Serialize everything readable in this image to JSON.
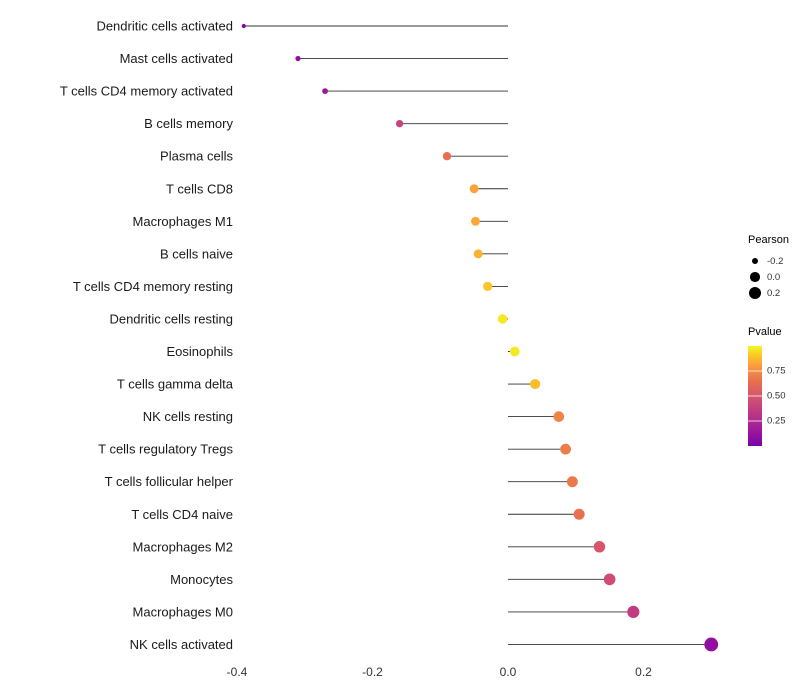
{
  "chart_data": {
    "type": "lollipop",
    "title": "",
    "xlabel": "",
    "ylabel": "",
    "xlim": [
      -0.45,
      0.335
    ],
    "x_ticks": [
      -0.4,
      -0.2,
      0.0,
      0.2
    ],
    "x_tick_labels": [
      "-0.4",
      "-0.2",
      "0.0",
      "0.2"
    ],
    "grid": "off",
    "categories": [
      "Dendritic cells activated",
      "Mast cells activated",
      "T cells CD4 memory activated",
      "B cells memory",
      "Plasma cells",
      "T cells CD8",
      "Macrophages M1",
      "B cells naive",
      "T cells CD4 memory resting",
      "Dendritic cells resting",
      "Eosinophils",
      "T cells gamma delta",
      "NK cells resting",
      "T cells regulatory  Tregs",
      "T cells follicular helper",
      "T cells CD4 naive",
      "Macrophages M2",
      "Monocytes",
      "Macrophages M0",
      "NK cells activated"
    ],
    "series": [
      {
        "name": "Pearson",
        "values": [
          -0.39,
          -0.31,
          -0.27,
          -0.16,
          -0.09,
          -0.05,
          -0.048,
          -0.044,
          -0.03,
          -0.008,
          0.01,
          0.04,
          0.075,
          0.085,
          0.095,
          0.105,
          0.135,
          0.15,
          0.185,
          0.3
        ]
      },
      {
        "name": "Pvalue",
        "values": [
          0.03,
          0.1,
          0.15,
          0.4,
          0.65,
          0.82,
          0.83,
          0.86,
          0.9,
          0.97,
          0.97,
          0.88,
          0.72,
          0.7,
          0.68,
          0.65,
          0.5,
          0.45,
          0.35,
          0.1
        ]
      }
    ],
    "stem_color": "#333333",
    "colormap": {
      "name": "plasma-like",
      "stops": [
        {
          "t": 0.0,
          "color": "#7a02a8"
        },
        {
          "t": 0.15,
          "color": "#9c179e"
        },
        {
          "t": 0.3,
          "color": "#b83289"
        },
        {
          "t": 0.5,
          "color": "#d6556d"
        },
        {
          "t": 0.65,
          "color": "#e8704f"
        },
        {
          "t": 0.8,
          "color": "#fa9b3d"
        },
        {
          "t": 0.9,
          "color": "#fdc527"
        },
        {
          "t": 1.0,
          "color": "#f0f921"
        }
      ]
    },
    "legend_size": {
      "title": "Pearson",
      "ticks": [
        -0.2,
        0.0,
        0.2
      ],
      "tick_labels": [
        "-0.2",
        "0.0",
        "0.2"
      ],
      "dot_color": "#000000"
    },
    "legend_color": {
      "title": "Pvalue",
      "ticks": [
        0.75,
        0.5,
        0.25
      ],
      "tick_labels": [
        "0.75",
        "0.50",
        "0.25"
      ],
      "range": [
        0.0,
        1.0
      ]
    }
  }
}
